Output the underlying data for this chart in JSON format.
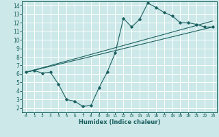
{
  "xlabel": "Humidex (Indice chaleur)",
  "xlim": [
    -0.5,
    23.5
  ],
  "ylim": [
    1.5,
    14.5
  ],
  "xticks": [
    0,
    1,
    2,
    3,
    4,
    5,
    6,
    7,
    8,
    9,
    10,
    11,
    12,
    13,
    14,
    15,
    16,
    17,
    18,
    19,
    20,
    21,
    22,
    23
  ],
  "yticks": [
    2,
    3,
    4,
    5,
    6,
    7,
    8,
    9,
    10,
    11,
    12,
    13,
    14
  ],
  "bg_color": "#cce8e8",
  "line_color": "#1a6060",
  "grid_color": "#ffffff",
  "line1_x": [
    0,
    1,
    2,
    3,
    4,
    5,
    6,
    7,
    8,
    9,
    10,
    11,
    12,
    13,
    14,
    15,
    16,
    17,
    18,
    19,
    20,
    21,
    22,
    23
  ],
  "line1_y": [
    6.2,
    6.4,
    6.1,
    6.2,
    4.8,
    3.0,
    2.8,
    2.2,
    2.3,
    4.4,
    6.2,
    8.5,
    12.5,
    11.5,
    12.4,
    14.3,
    13.8,
    13.2,
    12.8,
    12.0,
    12.0,
    11.8,
    11.5,
    11.5
  ],
  "line2_x": [
    0,
    23
  ],
  "line2_y": [
    6.2,
    11.5
  ],
  "line3_x": [
    0,
    23
  ],
  "line3_y": [
    6.2,
    12.2
  ],
  "xlabel_fontsize": 6.0,
  "tick_fontsize_x": 4.5,
  "tick_fontsize_y": 5.5
}
